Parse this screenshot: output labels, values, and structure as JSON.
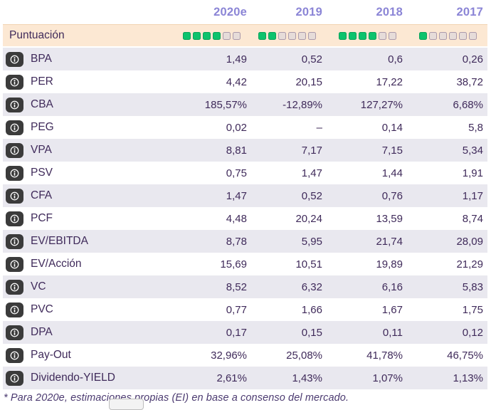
{
  "header": {
    "columns": [
      "2020e",
      "2019",
      "2018",
      "2017"
    ]
  },
  "score_row": {
    "label": "Puntuación",
    "scores": [
      {
        "filled": 4,
        "total": 6
      },
      {
        "filled": 2,
        "total": 6
      },
      {
        "filled": 4,
        "total": 6
      },
      {
        "filled": 1,
        "total": 6
      }
    ]
  },
  "rows": [
    {
      "label": "BPA",
      "values": [
        "1,49",
        "0,52",
        "0,6",
        "0,26"
      ]
    },
    {
      "label": "PER",
      "values": [
        "4,42",
        "20,15",
        "17,22",
        "38,72"
      ]
    },
    {
      "label": "CBA",
      "values": [
        "185,57%",
        "-12,89%",
        "127,27%",
        "6,68%"
      ]
    },
    {
      "label": "PEG",
      "values": [
        "0,02",
        "–",
        "0,14",
        "5,8"
      ]
    },
    {
      "label": "VPA",
      "values": [
        "8,81",
        "7,17",
        "7,15",
        "5,34"
      ]
    },
    {
      "label": "PSV",
      "values": [
        "0,75",
        "1,47",
        "1,44",
        "1,91"
      ]
    },
    {
      "label": "CFA",
      "values": [
        "1,47",
        "0,52",
        "0,76",
        "1,17"
      ]
    },
    {
      "label": "PCF",
      "values": [
        "4,48",
        "20,24",
        "13,59",
        "8,74"
      ]
    },
    {
      "label": "EV/EBITDA",
      "values": [
        "8,78",
        "5,95",
        "21,74",
        "28,09"
      ]
    },
    {
      "label": "EV/Acción",
      "values": [
        "15,69",
        "10,51",
        "19,89",
        "21,29"
      ]
    },
    {
      "label": "VC",
      "values": [
        "8,52",
        "6,32",
        "6,16",
        "5,83"
      ]
    },
    {
      "label": "PVC",
      "values": [
        "0,77",
        "1,66",
        "1,67",
        "1,75"
      ]
    },
    {
      "label": "DPA",
      "values": [
        "0,17",
        "0,15",
        "0,11",
        "0,12"
      ]
    },
    {
      "label": "Pay-Out",
      "values": [
        "32,96%",
        "25,08%",
        "41,78%",
        "46,75%"
      ]
    },
    {
      "label": "Dividendo-YIELD",
      "values": [
        "2,61%",
        "1,43%",
        "1,07%",
        "1,13%"
      ]
    }
  ],
  "footnote": "* Para 2020e, estimaciones propias (EI) en base a consenso del mercado.",
  "colors": {
    "header_text": "#8b85d6",
    "score_row_bg": "#fce8d3",
    "shaded_row_bg": "#e9e8ef",
    "text": "#3f2a5a",
    "square_filled": "#0cc36d",
    "square_filled_border": "#09a35b",
    "square_empty": "#e6dcd9",
    "square_empty_border": "#ab9aab",
    "info_badge_bg": "#3b3b3b"
  }
}
